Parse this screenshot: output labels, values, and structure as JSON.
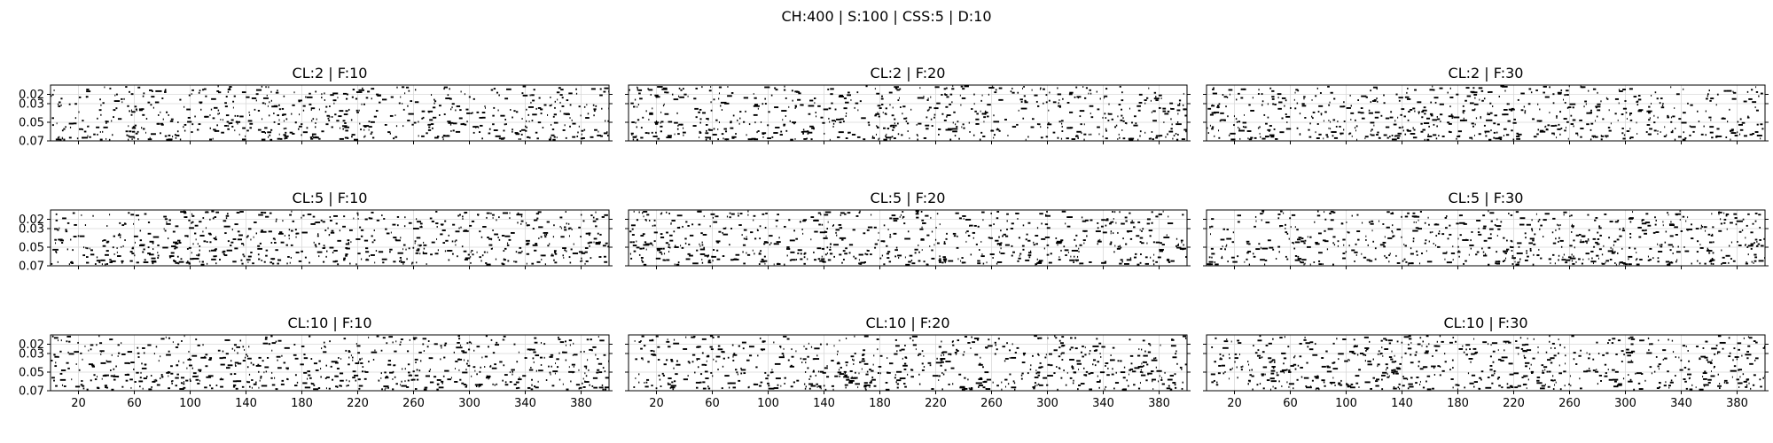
{
  "figure_title": "CH:400 | S:100 | CSS:5 | D:10",
  "chart_data": [
    {
      "type": "scatter",
      "title": "CL:2 | F:10",
      "xlim": [
        0,
        400
      ],
      "ylim": [
        0.07,
        0.01
      ],
      "xticks": [
        20,
        60,
        100,
        140,
        180,
        220,
        260,
        300,
        340,
        380
      ],
      "yticks": [
        0.02,
        0.03,
        0.05,
        0.07
      ],
      "grid": true,
      "marker": "horizontal-dash",
      "color": "#000000",
      "seed": 11
    },
    {
      "type": "scatter",
      "title": "CL:2 | F:20",
      "xlim": [
        0,
        400
      ],
      "ylim": [
        0.07,
        0.01
      ],
      "xticks": [
        20,
        60,
        100,
        140,
        180,
        220,
        260,
        300,
        340,
        380
      ],
      "yticks": [
        0.02,
        0.03,
        0.05,
        0.07
      ],
      "grid": true,
      "marker": "horizontal-dash",
      "color": "#000000",
      "seed": 23
    },
    {
      "type": "scatter",
      "title": "CL:2 | F:30",
      "xlim": [
        0,
        400
      ],
      "ylim": [
        0.07,
        0.01
      ],
      "xticks": [
        20,
        60,
        100,
        140,
        180,
        220,
        260,
        300,
        340,
        380
      ],
      "yticks": [
        0.02,
        0.03,
        0.05,
        0.07
      ],
      "grid": true,
      "marker": "horizontal-dash",
      "color": "#000000",
      "seed": 37
    },
    {
      "type": "scatter",
      "title": "CL:5 | F:10",
      "xlim": [
        0,
        400
      ],
      "ylim": [
        0.07,
        0.01
      ],
      "xticks": [
        20,
        60,
        100,
        140,
        180,
        220,
        260,
        300,
        340,
        380
      ],
      "yticks": [
        0.02,
        0.03,
        0.05,
        0.07
      ],
      "grid": true,
      "marker": "horizontal-dash",
      "color": "#000000",
      "seed": 41
    },
    {
      "type": "scatter",
      "title": "CL:5 | F:20",
      "xlim": [
        0,
        400
      ],
      "ylim": [
        0.07,
        0.01
      ],
      "xticks": [
        20,
        60,
        100,
        140,
        180,
        220,
        260,
        300,
        340,
        380
      ],
      "yticks": [
        0.02,
        0.03,
        0.05,
        0.07
      ],
      "grid": true,
      "marker": "horizontal-dash",
      "color": "#000000",
      "seed": 53
    },
    {
      "type": "scatter",
      "title": "CL:5 | F:30",
      "xlim": [
        0,
        400
      ],
      "ylim": [
        0.07,
        0.01
      ],
      "xticks": [
        20,
        60,
        100,
        140,
        180,
        220,
        260,
        300,
        340,
        380
      ],
      "yticks": [
        0.02,
        0.03,
        0.05,
        0.07
      ],
      "grid": true,
      "marker": "horizontal-dash",
      "color": "#000000",
      "seed": 67
    },
    {
      "type": "scatter",
      "title": "CL:10 | F:10",
      "xlim": [
        0,
        400
      ],
      "ylim": [
        0.07,
        0.01
      ],
      "xticks": [
        20,
        60,
        100,
        140,
        180,
        220,
        260,
        300,
        340,
        380
      ],
      "yticks": [
        0.02,
        0.03,
        0.05,
        0.07
      ],
      "grid": true,
      "marker": "horizontal-dash",
      "color": "#000000",
      "seed": 71
    },
    {
      "type": "scatter",
      "title": "CL:10 | F:20",
      "xlim": [
        0,
        400
      ],
      "ylim": [
        0.07,
        0.01
      ],
      "xticks": [
        20,
        60,
        100,
        140,
        180,
        220,
        260,
        300,
        340,
        380
      ],
      "yticks": [
        0.02,
        0.03,
        0.05,
        0.07
      ],
      "grid": true,
      "marker": "horizontal-dash",
      "color": "#000000",
      "seed": 83
    },
    {
      "type": "scatter",
      "title": "CL:10 | F:30",
      "xlim": [
        0,
        400
      ],
      "ylim": [
        0.07,
        0.01
      ],
      "xticks": [
        20,
        60,
        100,
        140,
        180,
        220,
        260,
        300,
        340,
        380
      ],
      "yticks": [
        0.02,
        0.03,
        0.05,
        0.07
      ],
      "grid": true,
      "marker": "horizontal-dash",
      "color": "#000000",
      "seed": 97
    }
  ]
}
